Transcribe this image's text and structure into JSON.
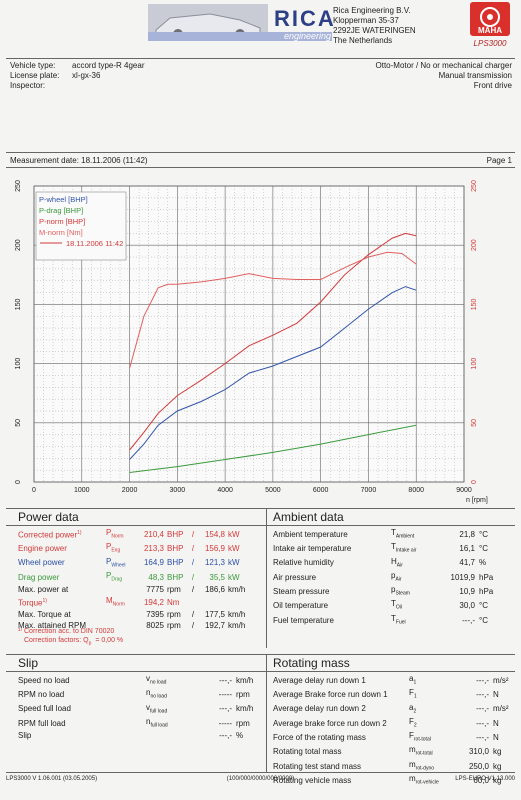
{
  "header": {
    "brand": "RICA",
    "brand_sub": "engineering",
    "company_lines": [
      "Rica Engineering B.V.",
      "Klopperman 35-37",
      "2292JE WATERINGEN",
      "The Netherlands"
    ],
    "maha_logo": "MAHA",
    "maha_model": "LPS3000"
  },
  "vehicle": {
    "type_label": "Vehicle type:",
    "type_value": "accord type-R 4gear",
    "plate_label": "License plate:",
    "plate_value": "xl-gx-36",
    "inspector_label": "Inspector:",
    "inspector_value": "",
    "engine": "Otto-Motor / No or mechanical charger",
    "transmission": "Manual transmission",
    "drive": "Front drive"
  },
  "measurement": {
    "date_text": "Measurement date: 18.11.2006 (11:42)",
    "page_text": "Page 1"
  },
  "chart_data": {
    "type": "line",
    "xlim": [
      0,
      9000
    ],
    "ylim_left": [
      0,
      250
    ],
    "ylim_right": [
      0,
      250
    ],
    "xlabel": "n [rpm]",
    "x_ticks": [
      "0",
      "1000",
      "2000",
      "3000",
      "4000",
      "5000",
      "6000",
      "7000",
      "8000",
      "9000"
    ],
    "y_ticks": [
      "0",
      "50",
      "100",
      "150",
      "200",
      "250"
    ],
    "grid": true,
    "legend_position": "top-left",
    "legend": {
      "entries": [
        "P-wheel [BHP]",
        "P-drag [BHP]",
        "P-norm [BHP]",
        "M-norm [Nm]"
      ],
      "date_entry": "18.11.2006 11:42"
    },
    "series": [
      {
        "name": "P-wheel [BHP]",
        "color": "#3355aa",
        "axis": "left",
        "x": [
          2000,
          2300,
          2600,
          3000,
          3500,
          4000,
          4500,
          5000,
          5500,
          6000,
          6500,
          7000,
          7500,
          7775,
          8000
        ],
        "y": [
          19,
          32,
          48,
          60,
          68,
          78,
          92,
          98,
          106,
          114,
          130,
          146,
          160,
          165,
          162
        ]
      },
      {
        "name": "P-drag [BHP]",
        "color": "#3c9a3c",
        "axis": "left",
        "x": [
          2000,
          3000,
          4000,
          5000,
          6000,
          7000,
          8000
        ],
        "y": [
          8,
          13,
          19,
          25,
          32,
          40,
          48
        ]
      },
      {
        "name": "P-norm [BHP]",
        "color": "#d23a3a",
        "axis": "left",
        "x": [
          2000,
          2300,
          2600,
          3000,
          3500,
          4000,
          4500,
          5000,
          5500,
          6000,
          6500,
          7000,
          7500,
          7775,
          8000
        ],
        "y": [
          27,
          42,
          58,
          73,
          86,
          100,
          115,
          124,
          134,
          152,
          175,
          192,
          206,
          210,
          208
        ]
      },
      {
        "name": "M-norm [Nm]",
        "color": "#e06060",
        "axis": "right",
        "x": [
          2000,
          2300,
          2600,
          2800,
          3000,
          3500,
          4000,
          4500,
          5000,
          5500,
          6000,
          6500,
          7000,
          7395,
          7700,
          8000
        ],
        "y": [
          96,
          140,
          164,
          167,
          167,
          169,
          172,
          176,
          172,
          171,
          171,
          181,
          190,
          194,
          193,
          184
        ]
      }
    ]
  },
  "power": {
    "title": "Power data",
    "rows": [
      {
        "label": "Corrected power",
        "sup": "1)",
        "sym": "P",
        "sub": "Norm",
        "v1": "210,4",
        "u1": "BHP",
        "sep": "/",
        "v2": "154,8",
        "u2": "kW",
        "color": "#d23a3a"
      },
      {
        "label": "Engine power",
        "sup": "",
        "sym": "P",
        "sub": "Eng",
        "v1": "213,3",
        "u1": "BHP",
        "sep": "/",
        "v2": "156,9",
        "u2": "kW",
        "color": "#d23a3a"
      },
      {
        "label": "Wheel power",
        "sup": "",
        "sym": "P",
        "sub": "Wheel",
        "v1": "164,9",
        "u1": "BHP",
        "sep": "/",
        "v2": "121,3",
        "u2": "kW",
        "color": "#2d50a6"
      },
      {
        "label": "Drag power",
        "sup": "",
        "sym": "P",
        "sub": "Drag",
        "v1": "48,3",
        "u1": "BHP",
        "sep": "/",
        "v2": "35,5",
        "u2": "kW",
        "color": "#3c9a3c"
      },
      {
        "label": "Max. power at",
        "sup": "",
        "sym": "",
        "sub": "",
        "v1": "7775",
        "u1": "rpm",
        "sep": "/",
        "v2": "186,6",
        "u2": "km/h",
        "color": "#222222"
      },
      {
        "label": "",
        "sup": "",
        "sym": "",
        "sub": "",
        "v1": "",
        "u1": "",
        "sep": "",
        "v2": "",
        "u2": "",
        "color": "#222222"
      },
      {
        "label": "Torque",
        "sup": "1)",
        "sym": "M",
        "sub": "Norm",
        "v1": "194,2",
        "u1": "Nm",
        "sep": "",
        "v2": "",
        "u2": "",
        "color": "#d23a3a"
      },
      {
        "label": "Max. Torque at",
        "sup": "",
        "sym": "",
        "sub": "",
        "v1": "7395",
        "u1": "rpm",
        "sep": "/",
        "v2": "177,5",
        "u2": "km/h",
        "color": "#222222"
      },
      {
        "label": "Max. attained RPM",
        "sup": "",
        "sym": "",
        "sub": "",
        "v1": "8025",
        "u1": "rpm",
        "sep": "/",
        "v2": "192,7",
        "u2": "km/h",
        "color": "#222222"
      }
    ],
    "note1": "¹⁾ Correction acc. to DIN 70020",
    "note2": "Correction factors: Q",
    "note2_sub": "p",
    "note2_val": "= 0,00 %"
  },
  "ambient": {
    "title": "Ambient data",
    "rows": [
      {
        "label": "Ambient temperature",
        "sym": "T",
        "sub": "Ambient",
        "value": "21,8",
        "unit": "°C"
      },
      {
        "label": "Intake air temperature",
        "sym": "T",
        "sub": "Intake air",
        "value": "16,1",
        "unit": "°C"
      },
      {
        "label": "Relative humidity",
        "sym": "H",
        "sub": "Air",
        "value": "41,7",
        "unit": "%"
      },
      {
        "label": "Air pressure",
        "sym": "p",
        "sub": "Air",
        "value": "1019,9",
        "unit": "hPa"
      },
      {
        "label": "Steam pressure",
        "sym": "p",
        "sub": "Steam",
        "value": "10,9",
        "unit": "hPa"
      },
      {
        "label": "",
        "sym": "",
        "sub": "",
        "value": "",
        "unit": ""
      },
      {
        "label": "Oil temperature",
        "sym": "T",
        "sub": "Oil",
        "value": "30,0",
        "unit": "°C"
      },
      {
        "label": "Fuel temperature",
        "sym": "T",
        "sub": "Fuel",
        "value": "---,-",
        "unit": "°C"
      }
    ]
  },
  "slip": {
    "title": "Slip",
    "rows": [
      {
        "label": "Speed no load",
        "sym": "v",
        "sub": "no load",
        "value": "---,-",
        "unit": "km/h"
      },
      {
        "label": "RPM no load",
        "sym": "n",
        "sub": "no load",
        "value": "-----",
        "unit": "rpm"
      },
      {
        "label": "Speed full load",
        "sym": "v",
        "sub": "full load",
        "value": "---,-",
        "unit": "km/h"
      },
      {
        "label": "RPM full load",
        "sym": "n",
        "sub": "full load",
        "value": "-----",
        "unit": "rpm"
      },
      {
        "label": "",
        "sym": "",
        "sub": "",
        "value": "",
        "unit": ""
      },
      {
        "label": "Slip",
        "sym": "",
        "sub": "",
        "value": "---,-",
        "unit": "%"
      }
    ]
  },
  "rotating": {
    "title": "Rotating mass",
    "rows": [
      {
        "label": "Average delay run down 1",
        "sym": "a",
        "sub": "1",
        "value": "---,-",
        "unit": "m/s²"
      },
      {
        "label": "Average Brake force run down 1",
        "sym": "F",
        "sub": "1",
        "value": "---,-",
        "unit": "N"
      },
      {
        "label": "Average delay run down 2",
        "sym": "a",
        "sub": "2",
        "value": "---,-",
        "unit": "m/s²"
      },
      {
        "label": "Average brake force run down 2",
        "sym": "F",
        "sub": "2",
        "value": "---,-",
        "unit": "N"
      },
      {
        "label": "",
        "sym": "",
        "sub": "",
        "value": "",
        "unit": ""
      },
      {
        "label": "Force of the rotating mass",
        "sym": "F",
        "sub": "rot-total",
        "value": "---,-",
        "unit": "N"
      },
      {
        "label": "",
        "sym": "",
        "sub": "",
        "value": "",
        "unit": ""
      },
      {
        "label": "Rotating total mass",
        "sym": "m",
        "sub": "rot-total",
        "value": "310,0",
        "unit": "kg"
      },
      {
        "label": "Rotating test stand mass",
        "sym": "m",
        "sub": "rot-dyno",
        "value": "250,0",
        "unit": "kg"
      },
      {
        "label": "Rotating vehicle mass",
        "sym": "m",
        "sub": "rot-vehicle",
        "value": "60,0",
        "unit": "kg"
      }
    ]
  },
  "footer": {
    "left": "LPS3000 V 1.06.001 (03.05.2005)",
    "center": "(100/000/0000/000/0000)",
    "right": "LPS-EURO V1.13.000"
  }
}
